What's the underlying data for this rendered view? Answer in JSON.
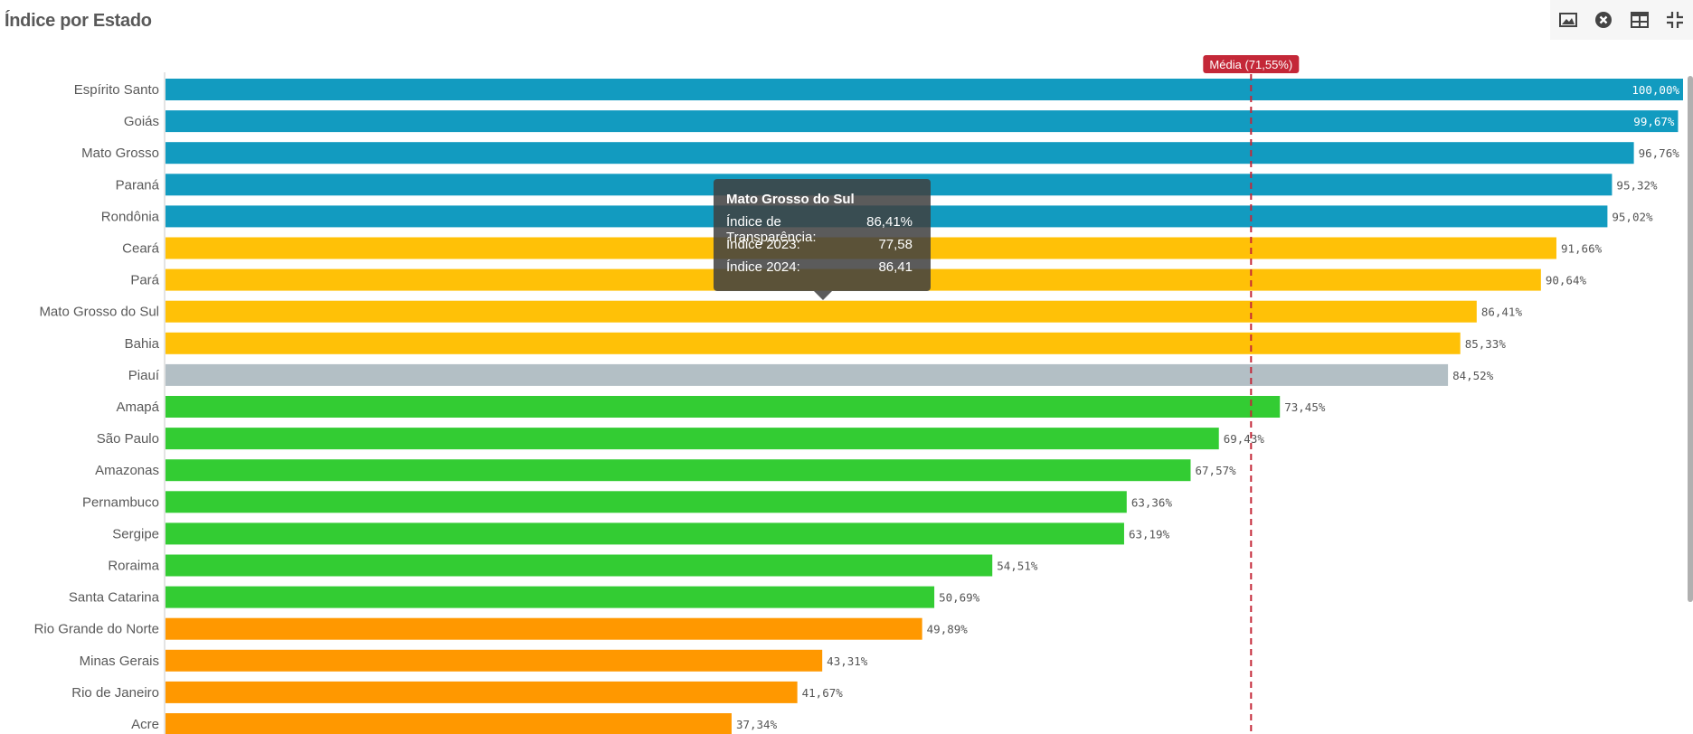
{
  "header": {
    "title": "Índice por Estado"
  },
  "toolbar": {
    "icons": [
      "image-icon",
      "close-circle-icon",
      "table-icon",
      "collapse-icon"
    ]
  },
  "tooltip": {
    "title": "Mato Grosso do Sul",
    "rows": [
      {
        "label": "Índice de Transparência:",
        "value": "86,41%"
      },
      {
        "label": "Índice 2023:",
        "value": "77,58"
      },
      {
        "label": "Índice 2024:",
        "value": "86,41"
      }
    ]
  },
  "colors": {
    "blue": "#129bc0",
    "yellow": "#ffc107",
    "gray": "#b3bfc5",
    "green": "#33cc33",
    "orange": "#ff9800",
    "mean_line": "#c42838"
  },
  "chart_data": {
    "type": "bar",
    "orientation": "horizontal",
    "title": "Índice por Estado",
    "xlim": [
      0,
      100
    ],
    "grid": false,
    "reference_line": {
      "value": 71.55,
      "label": "Média (71,55%)"
    },
    "categories": [
      "Espírito Santo",
      "Goiás",
      "Mato Grosso",
      "Paraná",
      "Rondônia",
      "Ceará",
      "Pará",
      "Mato Grosso do Sul",
      "Bahia",
      "Piauí",
      "Amapá",
      "São Paulo",
      "Amazonas",
      "Pernambuco",
      "Sergipe",
      "Roraima",
      "Santa Catarina",
      "Rio Grande do Norte",
      "Minas Gerais",
      "Rio de Janeiro",
      "Acre"
    ],
    "values": [
      100.0,
      99.67,
      96.76,
      95.32,
      95.02,
      91.66,
      90.64,
      86.41,
      85.33,
      84.52,
      73.45,
      69.43,
      67.57,
      63.36,
      63.19,
      54.51,
      50.69,
      49.89,
      43.31,
      41.67,
      37.34
    ],
    "value_labels": [
      "100,00%",
      "99,67%",
      "96,76%",
      "95,32%",
      "95,02%",
      "91,66%",
      "90,64%",
      "86,41%",
      "85,33%",
      "84,52%",
      "73,45%",
      "69,43%",
      "67,57%",
      "63,36%",
      "63,19%",
      "54,51%",
      "50,69%",
      "49,89%",
      "43,31%",
      "41,67%",
      "37,34%"
    ],
    "bar_colors": [
      "blue",
      "blue",
      "blue",
      "blue",
      "blue",
      "yellow",
      "yellow",
      "yellow",
      "yellow",
      "gray",
      "green",
      "green",
      "green",
      "green",
      "green",
      "green",
      "green",
      "orange",
      "orange",
      "orange",
      "orange"
    ]
  }
}
